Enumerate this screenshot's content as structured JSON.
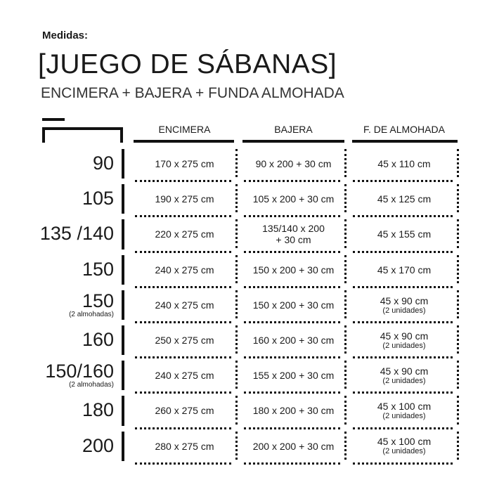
{
  "header": {
    "label": "Medidas:",
    "title": "[JUEGO DE SÁBANAS]",
    "subtitle": "ENCIMERA  + BAJERA + FUNDA ALMOHADA"
  },
  "columns": [
    "ENCIMERA",
    "BAJERA",
    "F. DE ALMOHADA"
  ],
  "rows": [
    {
      "size": "90",
      "note": "",
      "encimera": "170 x 275 cm",
      "bajera": "90 x 200 + 30 cm",
      "bajera2": "",
      "almohada": "45 x 110  cm",
      "almohada_note": ""
    },
    {
      "size": "105",
      "note": "",
      "encimera": "190 x 275 cm",
      "bajera": "105 x 200 + 30 cm",
      "bajera2": "",
      "almohada": "45 x 125  cm",
      "almohada_note": ""
    },
    {
      "size": "135 /140",
      "note": "",
      "encimera": "220 x 275 cm",
      "bajera": "135/140 x 200",
      "bajera2": "+ 30 cm",
      "almohada": "45 x 155  cm",
      "almohada_note": ""
    },
    {
      "size": "150",
      "note": "",
      "encimera": "240 x 275 cm",
      "bajera": "150 x 200 + 30 cm",
      "bajera2": "",
      "almohada": "45 x 170  cm",
      "almohada_note": ""
    },
    {
      "size": "150",
      "note": "(2 almohadas)",
      "encimera": "240 x 275 cm",
      "bajera": "150 x 200 + 30 cm",
      "bajera2": "",
      "almohada": "45 x 90 cm",
      "almohada_note": "(2 unidades)"
    },
    {
      "size": "160",
      "note": "",
      "encimera": "250 x 275 cm",
      "bajera": "160 x 200 + 30 cm",
      "bajera2": "",
      "almohada": "45 x 90 cm",
      "almohada_note": "(2 unidades)"
    },
    {
      "size": "150/160",
      "note": "(2 almohadas)",
      "encimera": "240 x 275 cm",
      "bajera": "155 x 200 + 30 cm",
      "bajera2": "",
      "almohada": "45 x 90 cm",
      "almohada_note": "(2 unidades)"
    },
    {
      "size": "180",
      "note": "",
      "encimera": "260 x 275 cm",
      "bajera": "180 x 200 + 30 cm",
      "bajera2": "",
      "almohada": "45 x 100 cm",
      "almohada_note": "(2 unidades)"
    },
    {
      "size": "200",
      "note": "",
      "encimera": "280 x 275 cm",
      "bajera": "200 x 200 + 30 cm",
      "bajera2": "",
      "almohada": "45 x 100 cm",
      "almohada_note": "(2 unidades)"
    }
  ]
}
